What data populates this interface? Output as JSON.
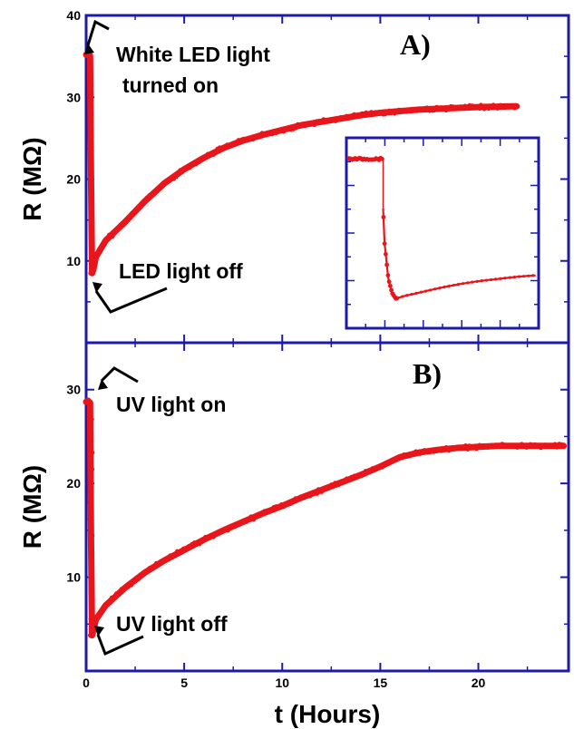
{
  "chart_data": [
    {
      "type": "scatter",
      "panel_label": "A)",
      "xlabel": "t (Hours)",
      "ylabel": "R (MΩ)",
      "xlim": [
        0,
        24.6
      ],
      "ylim": [
        0,
        40
      ],
      "xticks": [
        0,
        5,
        10,
        15,
        20
      ],
      "yticks": [
        10,
        20,
        30,
        40
      ],
      "series": [
        {
          "color": "#e8161b",
          "x": [
            0.0,
            0.1,
            0.2,
            0.25,
            0.3,
            0.35,
            0.5,
            1,
            2,
            3,
            4,
            5,
            6,
            7,
            8,
            9,
            10,
            11,
            12,
            13,
            14,
            15,
            16,
            17,
            18,
            19,
            20,
            21,
            22
          ],
          "y": [
            35.2,
            35.3,
            35.1,
            20.0,
            8.5,
            8.8,
            10.5,
            12.5,
            14.8,
            17.3,
            19.5,
            21.2,
            22.6,
            23.8,
            24.7,
            25.4,
            26.0,
            26.6,
            27.0,
            27.4,
            27.8,
            28.1,
            28.3,
            28.5,
            28.6,
            28.7,
            28.8,
            28.85,
            28.9
          ]
        }
      ],
      "annotations": [
        {
          "text_lines": [
            "White LED light",
            "turned on"
          ],
          "x": 0.1,
          "y": 35.3
        },
        {
          "text_lines": [
            "LED light off"
          ],
          "x": 0.3,
          "y": 8.5
        }
      ],
      "inset": {
        "type": "scatter",
        "series": [
          {
            "color": "#e8161b",
            "x": [
              0,
              0.5,
              1,
              1.5,
              1.8,
              1.82,
              1.9,
              2.0,
              2.1,
              2.3,
              2.5,
              3,
              4,
              5,
              6,
              7,
              8,
              9,
              10
            ],
            "y": [
              29.0,
              29.0,
              29.0,
              29.0,
              29.0,
              22.0,
              17.0,
              14.5,
              12.0,
              10.0,
              9.2,
              9.6,
              10.2,
              10.8,
              11.3,
              11.7,
              12.0,
              12.3,
              12.5
            ]
          }
        ]
      }
    },
    {
      "type": "scatter",
      "panel_label": "B)",
      "xlabel": "t (Hours)",
      "ylabel": "R (MΩ)",
      "xlim": [
        0,
        24.6
      ],
      "ylim": [
        0,
        35
      ],
      "xticks": [
        0,
        5,
        10,
        15,
        20
      ],
      "xtick_labels": [
        "0",
        "5",
        "10",
        "15",
        "20"
      ],
      "yticks": [
        10,
        20,
        30
      ],
      "series": [
        {
          "color": "#e8161b",
          "x": [
            0.0,
            0.1,
            0.2,
            0.25,
            0.3,
            0.35,
            0.5,
            1,
            2,
            3,
            4,
            5,
            6,
            7,
            8,
            9,
            10,
            11,
            12,
            13,
            14,
            15,
            16,
            17,
            18,
            19,
            20,
            21,
            22,
            23,
            24,
            24.4
          ],
          "y": [
            28.7,
            28.8,
            28.6,
            14.0,
            3.8,
            4.2,
            5.5,
            7.0,
            8.9,
            10.5,
            11.8,
            12.9,
            14.0,
            15.0,
            15.9,
            16.8,
            17.6,
            18.5,
            19.3,
            20.1,
            20.9,
            21.8,
            22.8,
            23.3,
            23.6,
            23.8,
            23.9,
            24.0,
            24.0,
            24.0,
            24.0,
            24.0
          ]
        }
      ],
      "annotations": [
        {
          "text_lines": [
            "UV light on"
          ],
          "x": 0.1,
          "y": 28.8
        },
        {
          "text_lines": [
            "UV light off"
          ],
          "x": 0.3,
          "y": 3.8
        }
      ]
    }
  ]
}
